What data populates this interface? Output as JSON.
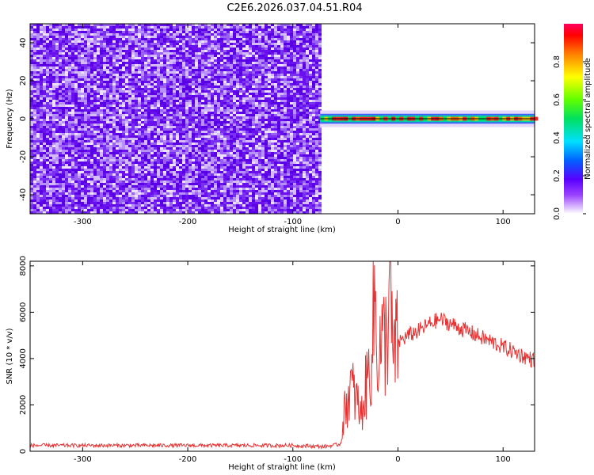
{
  "title": "C2E6.2026.037.04.51.R04",
  "chart_data": [
    {
      "type": "heatmap",
      "xlabel": "Height of straight line (km)",
      "ylabel": "Frequency (Hz)",
      "xlim": [
        -350,
        130
      ],
      "ylim": [
        -50,
        50
      ],
      "x_ticks": [
        -300,
        -200,
        -100,
        0,
        100
      ],
      "y_ticks": [
        -40,
        -20,
        0,
        20,
        40
      ],
      "colorbar": {
        "label": "Normalized spectral amplitude",
        "range": [
          0,
          1
        ],
        "ticks": [
          "0.0",
          "0.2",
          "0.4",
          "0.6",
          "0.8"
        ]
      },
      "regions": [
        {
          "x_range": [
            -350,
            -74
          ],
          "frequency_range": [
            -50,
            50
          ],
          "pattern": "broadband noise",
          "amplitude_range": [
            0.0,
            0.12
          ]
        },
        {
          "x_range": [
            -74,
            130
          ],
          "frequency_center": 0,
          "frequency_halfwidth": 2,
          "pattern": "narrow carrier line",
          "amplitude_range": [
            0.3,
            1.0
          ]
        }
      ]
    },
    {
      "type": "line",
      "xlabel": "Height of straight line (km)",
      "ylabel": "SNR (10 * v/v)",
      "xlim": [
        -350,
        130
      ],
      "ylim": [
        0,
        8200
      ],
      "x_ticks": [
        -300,
        -200,
        -100,
        0,
        100
      ],
      "y_ticks": [
        0,
        2000,
        4000,
        6000,
        8000
      ],
      "color": "#e83030",
      "series": [
        {
          "x": [
            -350,
            -300,
            -200,
            -100,
            -70,
            -55,
            -50,
            -45,
            -40,
            -35,
            -30,
            -25,
            -22,
            -20,
            -15,
            -10,
            -8,
            -5,
            0,
            10,
            20,
            30,
            40,
            50,
            60,
            70,
            80,
            90,
            100,
            110,
            120,
            130
          ],
          "y": [
            250,
            250,
            250,
            250,
            200,
            300,
            1900,
            2800,
            2300,
            1500,
            2900,
            4100,
            7000,
            4300,
            4600,
            5000,
            8200,
            4000,
            4700,
            5000,
            5200,
            5500,
            5700,
            5500,
            5300,
            5100,
            4900,
            4700,
            4500,
            4300,
            4100,
            3900
          ]
        }
      ]
    }
  ],
  "colors": {
    "noise_dark": "#6a00e0",
    "noise_light": "#e4d0fb",
    "line": "#e83030"
  }
}
